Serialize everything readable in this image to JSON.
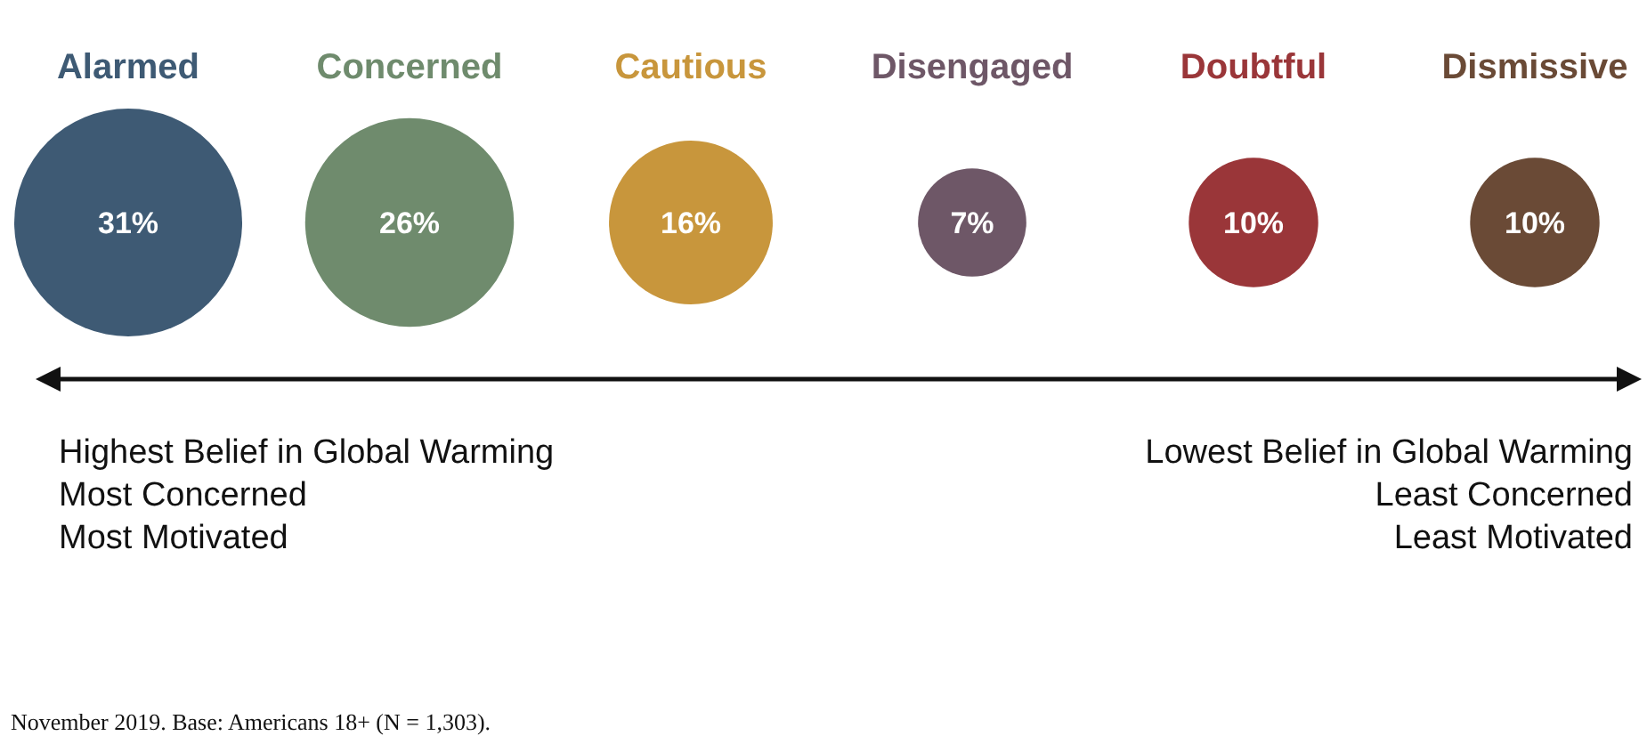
{
  "chart_data": {
    "type": "other",
    "categories": [
      "Alarmed",
      "Concerned",
      "Cautious",
      "Disengaged",
      "Doubtful",
      "Dismissive"
    ],
    "values": [
      31,
      26,
      16,
      7,
      10,
      10
    ],
    "value_labels": [
      "31%",
      "26%",
      "16%",
      "7%",
      "10%",
      "10%"
    ],
    "colors": [
      "#3e5a74",
      "#6f8b6d",
      "#c8963c",
      "#6e5767",
      "#9a3639",
      "#6a4a36"
    ],
    "annotations": [
      "Highest Belief in Global Warming",
      "Most Concerned",
      "Most Motivated",
      "Lowest Belief in Global Warming",
      "Least Concerned",
      "Least Motivated",
      "November 2019. Base: Americans 18+ (N = 1,303)."
    ]
  }
}
